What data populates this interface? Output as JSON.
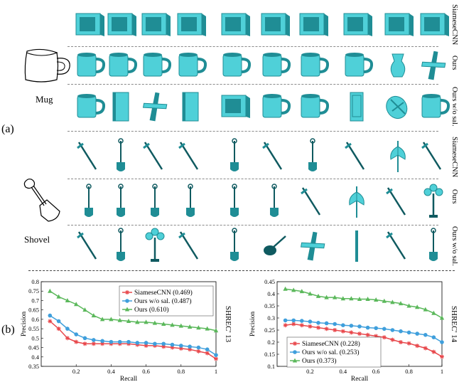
{
  "part_a": {
    "label": "(a)",
    "queries": [
      {
        "label": "Mug",
        "sketch_icon": "mug-sketch-icon",
        "rows": [
          {
            "method": "SiameseCNN",
            "results": [
              "tv",
              "tv",
              "tv",
              "tv",
              "tv",
              "tv",
              "tv",
              "tv",
              "tv",
              "tv"
            ]
          },
          {
            "method": "Ours",
            "results": [
              "mug",
              "mug",
              "mug",
              "mug",
              "mug",
              "mug",
              "mug",
              "mug",
              "vase",
              "airplane"
            ]
          },
          {
            "method": "Ours w/o sal.",
            "results": [
              "mug",
              "book",
              "airplane",
              "book",
              "tv",
              "mug",
              "mug",
              "door",
              "bicycle",
              "mug"
            ]
          }
        ]
      },
      {
        "label": "Shovel",
        "sketch_icon": "shovel-sketch-icon",
        "rows": [
          {
            "method": "SiameseCNN",
            "results": [
              "sword",
              "shovel",
              "sword",
              "sword",
              "shovel",
              "sword",
              "shovel",
              "sword",
              "axe",
              "sword"
            ]
          },
          {
            "method": "Ours",
            "results": [
              "shovel",
              "shovel",
              "shovel",
              "shovel",
              "shovel",
              "shovel",
              "sword",
              "axe",
              "sword",
              "lamp"
            ]
          },
          {
            "method": "Ours w/o sal.",
            "results": [
              "sword",
              "shovel",
              "lamp",
              "sword",
              "shovel",
              "guitar",
              "airplane",
              "bat",
              "sword",
              "shovel"
            ]
          }
        ]
      }
    ]
  },
  "part_b": {
    "label": "(b)"
  },
  "chart_data": [
    {
      "type": "line",
      "side_title": "SHREC' 13",
      "xlabel": "Recall",
      "ylabel": "Precision",
      "xlim": [
        0,
        1
      ],
      "ylim": [
        0.35,
        0.8
      ],
      "xticks": [
        "0.2",
        "0.4",
        "0.6",
        "0.8",
        "1"
      ],
      "xtick_values": [
        0.2,
        0.4,
        0.6,
        0.8,
        1
      ],
      "yticks": [
        "0.35",
        "0.4",
        "0.45",
        "0.5",
        "0.55",
        "0.6",
        "0.65",
        "0.7",
        "0.75",
        "0.8"
      ],
      "ytick_values": [
        0.35,
        0.4,
        0.45,
        0.5,
        0.55,
        0.6,
        0.65,
        0.7,
        0.75,
        0.8
      ],
      "legend_position": "top-right",
      "x": [
        0.05,
        0.1,
        0.15,
        0.2,
        0.25,
        0.3,
        0.35,
        0.4,
        0.45,
        0.5,
        0.55,
        0.6,
        0.65,
        0.7,
        0.75,
        0.8,
        0.85,
        0.9,
        0.95,
        1.0
      ],
      "series": [
        {
          "name": "SiameseCNN (0.469)",
          "color": "#e8474b",
          "marker": "star",
          "values": [
            0.59,
            0.55,
            0.5,
            0.48,
            0.47,
            0.47,
            0.47,
            0.47,
            0.47,
            0.47,
            0.465,
            0.46,
            0.46,
            0.455,
            0.45,
            0.445,
            0.44,
            0.43,
            0.42,
            0.39
          ]
        },
        {
          "name": "Ours w/o sal. (0.487)",
          "color": "#3f9fdc",
          "marker": "circle",
          "values": [
            0.62,
            0.59,
            0.55,
            0.52,
            0.5,
            0.49,
            0.485,
            0.48,
            0.48,
            0.48,
            0.475,
            0.475,
            0.47,
            0.47,
            0.465,
            0.46,
            0.455,
            0.45,
            0.44,
            0.41
          ]
        },
        {
          "name": "Ours (0.610)",
          "color": "#5bb85b",
          "marker": "triangle",
          "values": [
            0.75,
            0.72,
            0.7,
            0.68,
            0.65,
            0.62,
            0.6,
            0.6,
            0.595,
            0.59,
            0.585,
            0.585,
            0.58,
            0.575,
            0.57,
            0.565,
            0.56,
            0.555,
            0.55,
            0.54
          ]
        }
      ]
    },
    {
      "type": "line",
      "side_title": "SHREC' 14",
      "xlabel": "Recall",
      "ylabel": "Precision",
      "xlim": [
        0,
        1
      ],
      "ylim": [
        0.1,
        0.45
      ],
      "xticks": [
        "0.2",
        "0.4",
        "0.6",
        "0.8",
        "1"
      ],
      "xtick_values": [
        0.2,
        0.4,
        0.6,
        0.8,
        1
      ],
      "yticks": [
        "0.1",
        "0.15",
        "0.2",
        "0.25",
        "0.3",
        "0.35",
        "0.4",
        "0.45"
      ],
      "ytick_values": [
        0.1,
        0.15,
        0.2,
        0.25,
        0.3,
        0.35,
        0.4,
        0.45
      ],
      "legend_position": "bottom-left",
      "x": [
        0.05,
        0.1,
        0.15,
        0.2,
        0.25,
        0.3,
        0.35,
        0.4,
        0.45,
        0.5,
        0.55,
        0.6,
        0.65,
        0.7,
        0.75,
        0.8,
        0.85,
        0.9,
        0.95,
        1.0
      ],
      "series": [
        {
          "name": "SiameseCNN (0.228)",
          "color": "#e8474b",
          "marker": "star",
          "values": [
            0.27,
            0.275,
            0.27,
            0.265,
            0.26,
            0.255,
            0.25,
            0.245,
            0.24,
            0.235,
            0.23,
            0.225,
            0.22,
            0.21,
            0.2,
            0.195,
            0.185,
            0.175,
            0.16,
            0.14
          ]
        },
        {
          "name": "Ours w/o sal. (0.253)",
          "color": "#3f9fdc",
          "marker": "circle",
          "values": [
            0.29,
            0.29,
            0.288,
            0.285,
            0.28,
            0.278,
            0.275,
            0.27,
            0.268,
            0.265,
            0.26,
            0.258,
            0.255,
            0.25,
            0.245,
            0.24,
            0.235,
            0.23,
            0.22,
            0.2
          ]
        },
        {
          "name": "Ours (0.373)",
          "color": "#5bb85b",
          "marker": "triangle",
          "values": [
            0.42,
            0.415,
            0.41,
            0.4,
            0.39,
            0.385,
            0.385,
            0.38,
            0.38,
            0.378,
            0.378,
            0.375,
            0.37,
            0.365,
            0.36,
            0.35,
            0.345,
            0.335,
            0.32,
            0.3
          ]
        }
      ]
    }
  ]
}
